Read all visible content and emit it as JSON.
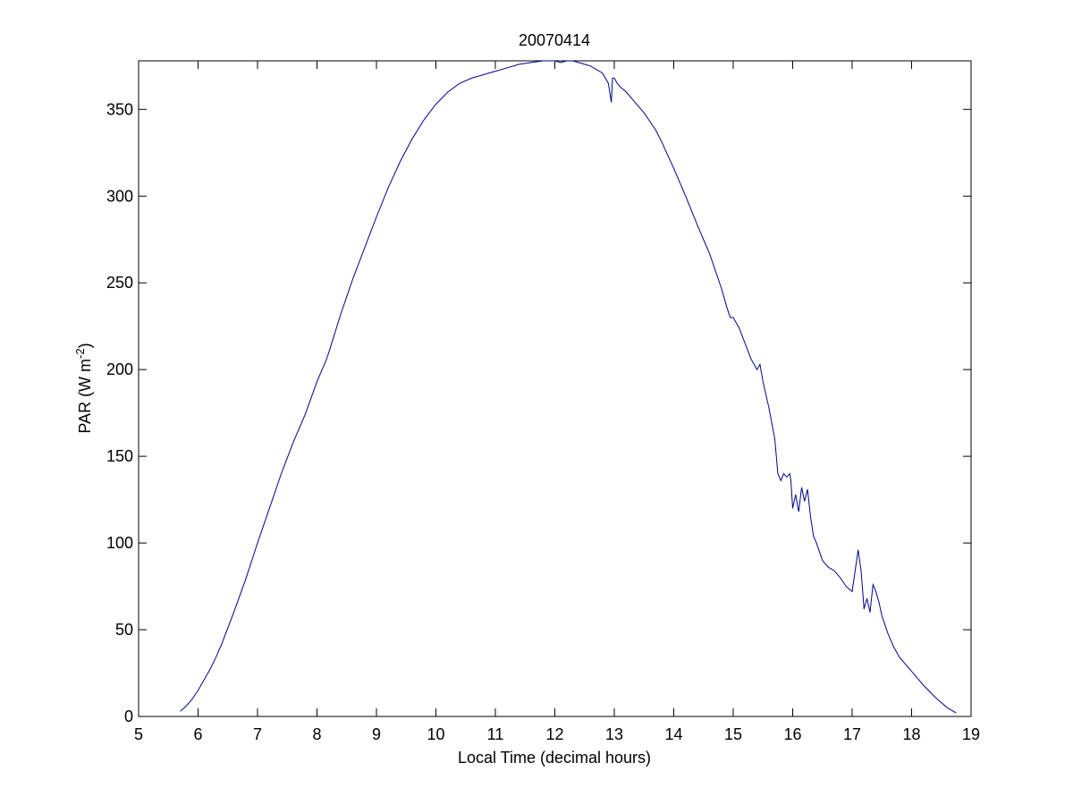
{
  "chart_data": {
    "type": "line",
    "title": "20070414",
    "xlabel": "Local Time (decimal hours)",
    "ylabel": "PAR (W m",
    "ylabel_superscript": "-2",
    "ylabel_suffix": ")",
    "xlim": [
      5,
      19
    ],
    "ylim": [
      0,
      378
    ],
    "xticks": [
      5,
      6,
      7,
      8,
      9,
      10,
      11,
      12,
      13,
      14,
      15,
      16,
      17,
      18,
      19
    ],
    "yticks": [
      0,
      50,
      100,
      150,
      200,
      250,
      300,
      350
    ],
    "grid": false,
    "line_color": "#00008b",
    "series": [
      {
        "x": [
          5.7,
          5.8,
          5.9,
          6.0,
          6.1,
          6.2,
          6.3,
          6.4,
          6.5,
          6.6,
          6.8,
          7.0,
          7.2,
          7.4,
          7.6,
          7.8,
          8.0,
          8.1,
          8.15,
          8.2,
          8.4,
          8.6,
          8.8,
          9.0,
          9.2,
          9.4,
          9.6,
          9.8,
          10.0,
          10.2,
          10.4,
          10.6,
          10.8,
          11.0,
          11.2,
          11.4,
          11.6,
          11.8,
          12.0,
          12.1,
          12.2,
          12.3,
          12.4,
          12.5,
          12.6,
          12.7,
          12.8,
          12.9,
          12.95,
          12.97,
          13.0,
          13.05,
          13.1,
          13.2,
          13.3,
          13.4,
          13.5,
          13.6,
          13.7,
          13.8,
          14.0,
          14.2,
          14.4,
          14.6,
          14.8,
          14.9,
          14.95,
          15.0,
          15.1,
          15.2,
          15.3,
          15.4,
          15.45,
          15.5,
          15.6,
          15.7,
          15.75,
          15.8,
          15.85,
          15.9,
          15.95,
          15.97,
          16.0,
          16.05,
          16.1,
          16.15,
          16.2,
          16.25,
          16.3,
          16.35,
          16.4,
          16.45,
          16.5,
          16.55,
          16.6,
          16.7,
          16.8,
          16.9,
          17.0,
          17.1,
          17.15,
          17.2,
          17.25,
          17.3,
          17.35,
          17.4,
          17.45,
          17.5,
          17.55,
          17.6,
          17.7,
          17.8,
          17.9,
          18.0,
          18.2,
          18.4,
          18.6,
          18.75
        ],
        "y": [
          3,
          6,
          10,
          15,
          21,
          27,
          34,
          42,
          51,
          60,
          79,
          100,
          120,
          140,
          158,
          174,
          193,
          201,
          205,
          210,
          232,
          252,
          270,
          288,
          305,
          320,
          333,
          344,
          353,
          360,
          365,
          368,
          370,
          372,
          374,
          376,
          377,
          378,
          378,
          377,
          378,
          378,
          377,
          376,
          375,
          373,
          371,
          365,
          354,
          368,
          368,
          365,
          363,
          360,
          356,
          352,
          348,
          343,
          338,
          331,
          316,
          300,
          283,
          267,
          247,
          235,
          230,
          230,
          224,
          215,
          206,
          200,
          203,
          193,
          178,
          160,
          140,
          136,
          140,
          138,
          140,
          136,
          120,
          128,
          118,
          132,
          124,
          131,
          115,
          104,
          100,
          95,
          90,
          88,
          86,
          84,
          80,
          75,
          72,
          96,
          84,
          62,
          68,
          60,
          76,
          72,
          66,
          58,
          53,
          48,
          40,
          34,
          30,
          26,
          18,
          11,
          5,
          2
        ]
      }
    ]
  }
}
